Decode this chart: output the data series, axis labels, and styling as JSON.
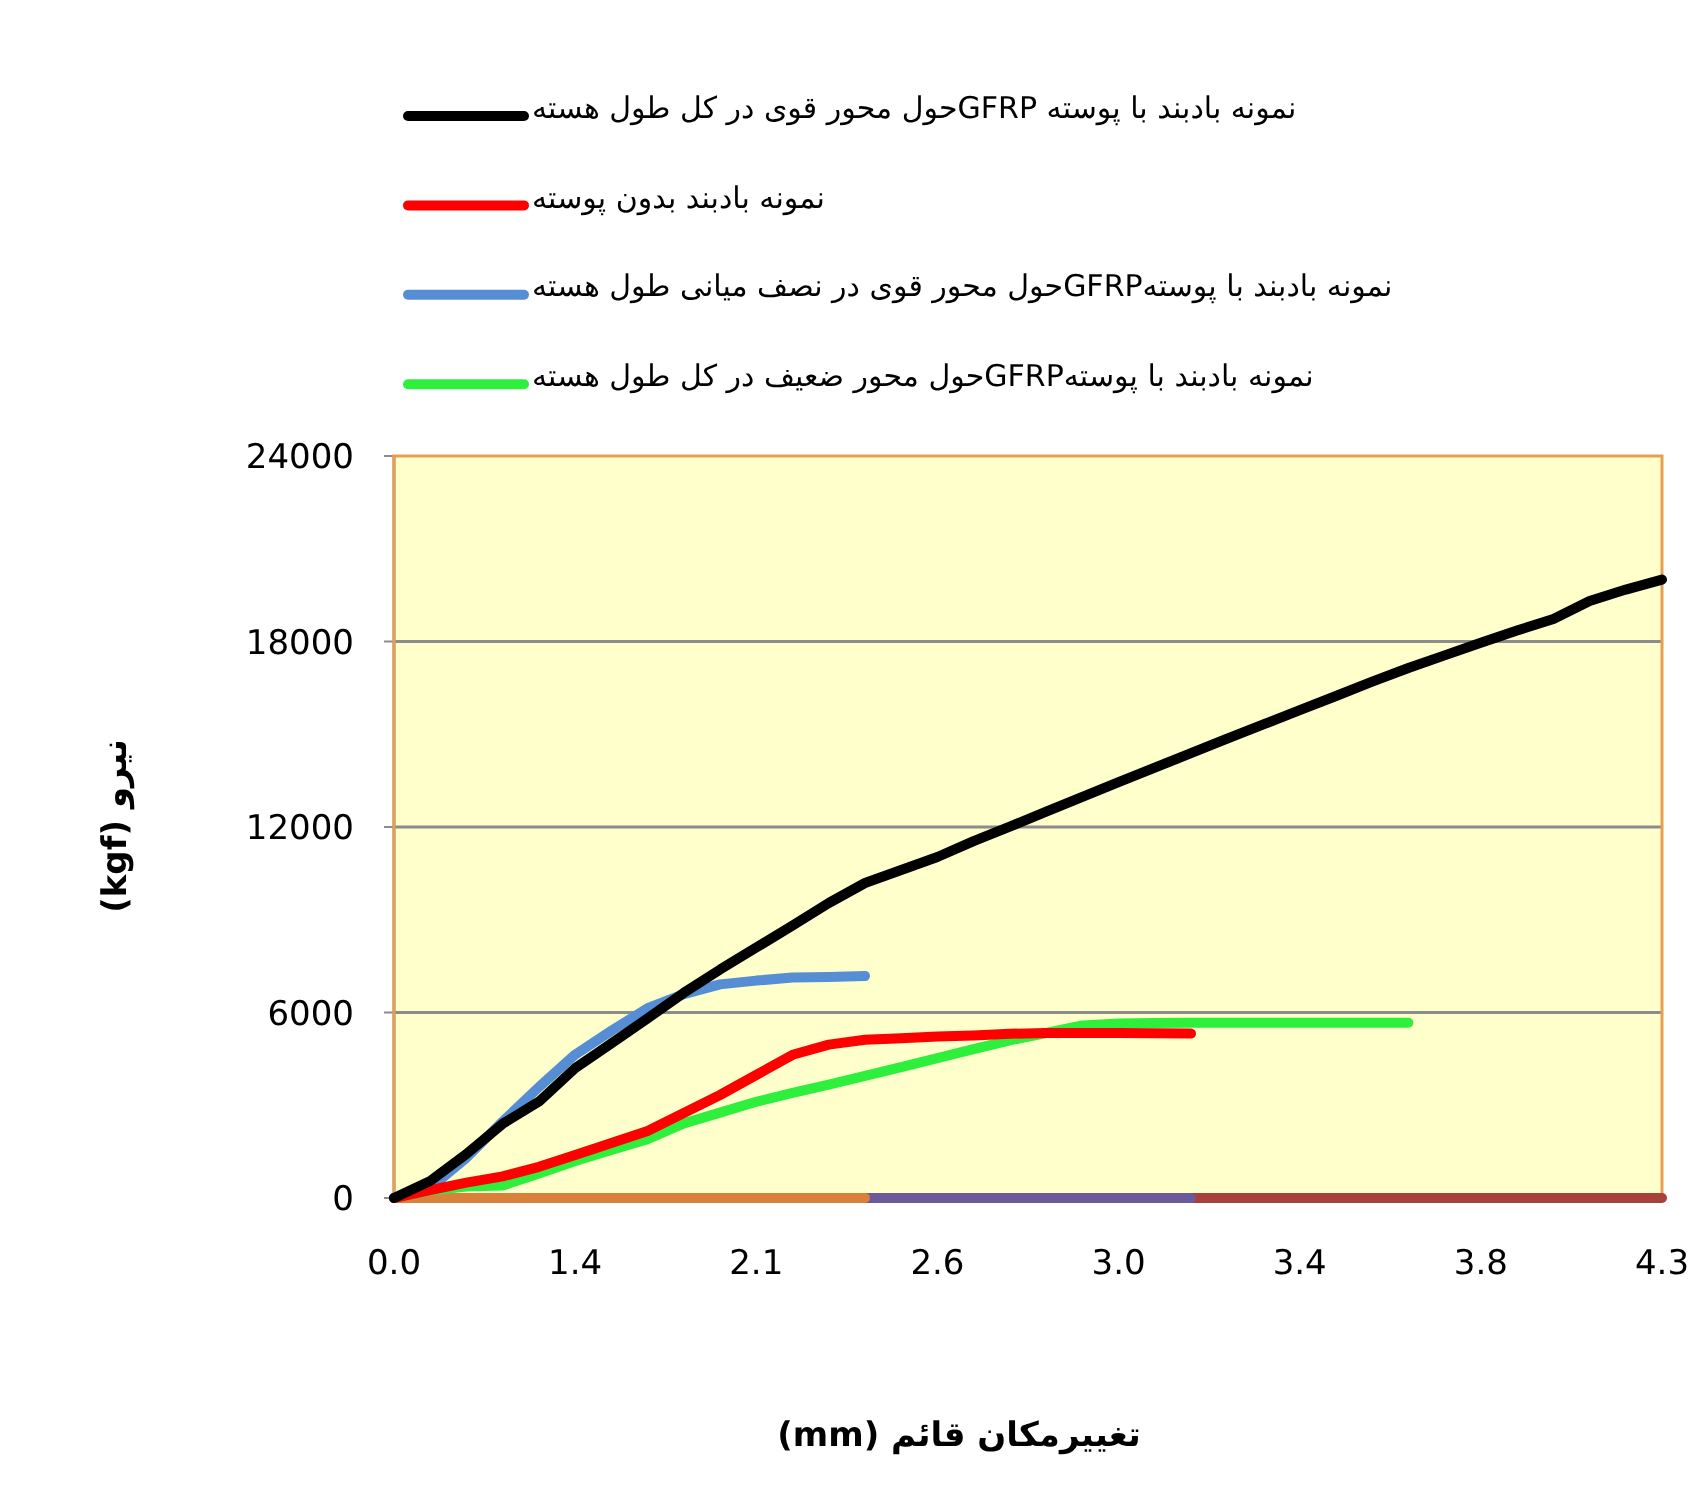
{
  "chart_data": {
    "type": "line",
    "xlabel": "تغییرمکان قائم (mm)",
    "ylabel": "نیرو (kgf)",
    "categories": [
      "0.0",
      null,
      null,
      null,
      null,
      "1.4",
      null,
      null,
      null,
      null,
      "2.1",
      null,
      null,
      null,
      null,
      "2.6",
      null,
      null,
      null,
      null,
      "3.0",
      null,
      null,
      null,
      null,
      "3.4",
      null,
      null,
      null,
      null,
      "3.8",
      null,
      null,
      null,
      null,
      "4.3"
    ],
    "ylim": [
      0,
      24000
    ],
    "yticks": [
      0,
      6000,
      12000,
      18000,
      24000
    ],
    "grid": "y",
    "legend": "top",
    "series": [
      {
        "name": "نمونه بادبند با پوسته GFRPحول محور قوی در کل طول هسته",
        "color": "#000000",
        "values": [
          0,
          550,
          1420,
          2400,
          3120,
          4200,
          5000,
          5810,
          6640,
          7390,
          8100,
          8820,
          9540,
          10190,
          10610,
          11030,
          11540,
          12010,
          12500,
          12980,
          13450,
          13920,
          14390,
          14860,
          15320,
          15780,
          16240,
          16700,
          17140,
          17550,
          17960,
          18350,
          18730,
          19310,
          19680,
          20000
        ]
      },
      {
        "name": "نمونه بادبند بدون پوسته",
        "color": "#ff0000",
        "values": [
          0,
          250,
          500,
          700,
          1010,
          1390,
          1780,
          2170,
          2750,
          3330,
          3980,
          4630,
          4960,
          5120,
          5170,
          5220,
          5260,
          5310,
          5340,
          5340,
          5340,
          5330,
          5320,
          null,
          null,
          null,
          null,
          null,
          null,
          null,
          null,
          null,
          null,
          null,
          null,
          null
        ]
      },
      {
        "name": "نمونه بادبند با پوستهGFRPحول محور قوی در نصف میانی طول هسته",
        "color": "#558ed5",
        "values": [
          0,
          330,
          1300,
          2470,
          3590,
          4640,
          5410,
          6140,
          6590,
          6910,
          7030,
          7130,
          7150,
          7180,
          null,
          null,
          null,
          null,
          null,
          null,
          null,
          null,
          null,
          null,
          null,
          null,
          null,
          null,
          null,
          null,
          null,
          null,
          null,
          null,
          null,
          null
        ]
      },
      {
        "name": "نمونه بادبند با پوستهGFRPحول محور ضعیف در کل طول هسته",
        "color": "#2ef03c",
        "values": [
          0,
          240,
          370,
          400,
          790,
          1200,
          1550,
          1900,
          2410,
          2760,
          3110,
          3400,
          3670,
          3950,
          4230,
          4520,
          4810,
          5100,
          5340,
          5580,
          5640,
          5660,
          5670,
          5670,
          5670,
          5670,
          5670,
          5670,
          5670,
          null,
          null,
          null,
          null,
          null,
          null,
          null
        ]
      },
      {
        "color": "#d9813a",
        "values": [
          0,
          0,
          0,
          0,
          0,
          0,
          0,
          0,
          0,
          0,
          0,
          0,
          0,
          0,
          null,
          null,
          null,
          null,
          null,
          null,
          null,
          null,
          null,
          null,
          null,
          null,
          null,
          null,
          null,
          null,
          null,
          null,
          null,
          null,
          null,
          null
        ]
      },
      {
        "color": "#6a5a9a",
        "values": [
          null,
          null,
          null,
          null,
          null,
          null,
          null,
          null,
          null,
          null,
          null,
          null,
          null,
          0,
          0,
          0,
          0,
          0,
          0,
          0,
          0,
          0,
          0,
          null,
          null,
          null,
          null,
          null,
          null,
          null,
          null,
          null,
          null,
          null,
          null,
          null
        ]
      },
      {
        "color": "#a8403c",
        "values": [
          null,
          null,
          null,
          null,
          null,
          null,
          null,
          null,
          null,
          null,
          null,
          null,
          null,
          null,
          null,
          null,
          null,
          null,
          null,
          null,
          null,
          null,
          0,
          0,
          0,
          0,
          0,
          0,
          0,
          0,
          0,
          0,
          0,
          0,
          0,
          0
        ]
      }
    ]
  }
}
